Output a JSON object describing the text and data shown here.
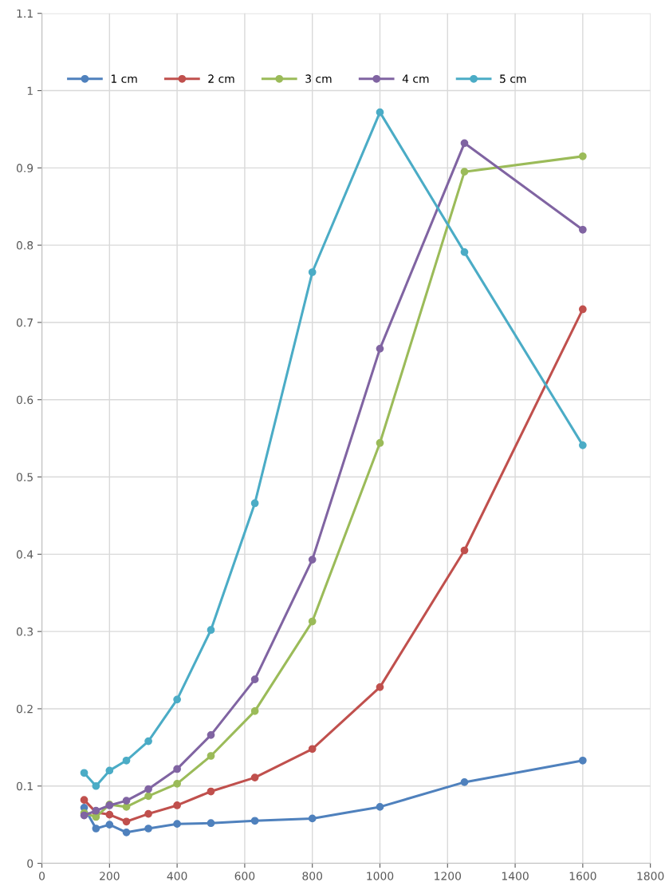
{
  "chart_data": {
    "type": "line",
    "x": [
      125,
      160,
      200,
      250,
      315,
      400,
      500,
      630,
      800,
      1000,
      1250,
      1600
    ],
    "series": [
      {
        "name": "1 cm",
        "color": "#4f81bd",
        "values": [
          0.072,
          0.045,
          0.05,
          0.04,
          0.045,
          0.051,
          0.052,
          0.055,
          0.058,
          0.073,
          0.105,
          0.133
        ]
      },
      {
        "name": "2 cm",
        "color": "#c0504d",
        "values": [
          0.082,
          0.066,
          0.063,
          0.054,
          0.064,
          0.075,
          0.093,
          0.111,
          0.148,
          0.228,
          0.405,
          0.717
        ]
      },
      {
        "name": "3 cm",
        "color": "#9bbb59",
        "values": [
          0.065,
          0.06,
          0.076,
          0.073,
          0.087,
          0.103,
          0.139,
          0.197,
          0.313,
          0.544,
          0.895,
          0.915
        ]
      },
      {
        "name": "4 cm",
        "color": "#8064a2",
        "values": [
          0.062,
          0.068,
          0.075,
          0.081,
          0.096,
          0.122,
          0.166,
          0.238,
          0.393,
          0.666,
          0.932,
          0.82
        ]
      },
      {
        "name": "5 cm",
        "color": "#4bacc6",
        "values": [
          0.117,
          0.1,
          0.12,
          0.133,
          0.158,
          0.212,
          0.302,
          0.466,
          0.765,
          0.972,
          0.791,
          0.541
        ]
      }
    ],
    "xlim": [
      0,
      1800
    ],
    "xticks": [
      0,
      200,
      400,
      600,
      800,
      1000,
      1200,
      1400,
      1600,
      1800
    ],
    "ylim": [
      0,
      1.1
    ],
    "yticks": [
      0,
      0.1,
      0.2,
      0.3,
      0.4,
      0.5,
      0.6,
      0.7,
      0.8,
      0.9,
      1,
      1.1
    ],
    "grid": true,
    "legend": "top",
    "marker": "circle",
    "line_style": "solid"
  }
}
